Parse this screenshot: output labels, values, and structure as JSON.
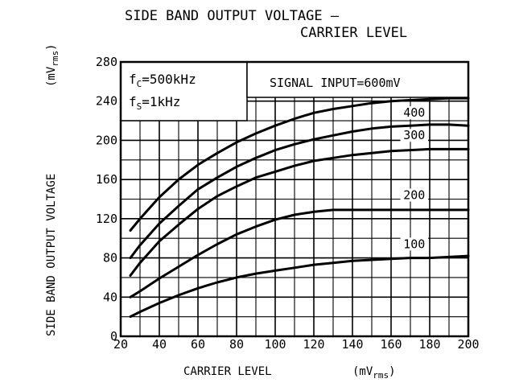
{
  "chart_data": {
    "type": "line",
    "title_line1": "SIDE BAND OUTPUT VOLTAGE —",
    "title_line2": "CARRIER LEVEL",
    "xlabel": "CARRIER LEVEL",
    "xlabel_unit_main": "(mV",
    "xlabel_unit_sub": "rms",
    "xlabel_unit_close": ")",
    "ylabel": "SIDE BAND OUTPUT VOLTAGE",
    "ylabel_unit_main": "(mV",
    "ylabel_unit_sub": "rms",
    "ylabel_unit_close": ")",
    "xlim": [
      20,
      200
    ],
    "ylim": [
      0,
      280
    ],
    "x_ticks": [
      20,
      40,
      60,
      80,
      100,
      120,
      140,
      160,
      180,
      200
    ],
    "x_tick_labels": [
      "20",
      "40",
      "60",
      "80",
      "100",
      "120",
      "140",
      "160",
      "180",
      "200"
    ],
    "y_ticks": [
      0,
      40,
      80,
      120,
      160,
      200,
      240,
      280
    ],
    "y_tick_labels": [
      "0",
      "40",
      "80",
      "120",
      "160",
      "200",
      "240",
      "280"
    ],
    "grid": true,
    "annotations": {
      "fc": {
        "main": "f",
        "sub": "C",
        "value": "=500kHz"
      },
      "fs": {
        "main": "f",
        "sub": "S",
        "value": "=1kHz"
      },
      "signal_input": "SIGNAL INPUT=600mV"
    },
    "series": [
      {
        "name": "600mV",
        "x": [
          25,
          30,
          40,
          50,
          60,
          70,
          80,
          90,
          100,
          110,
          120,
          130,
          140,
          150,
          160,
          170,
          180,
          190,
          200
        ],
        "y": [
          108,
          120,
          142,
          160,
          175,
          187,
          198,
          207,
          215,
          222,
          228,
          232,
          235,
          238,
          240,
          241,
          242,
          243,
          243
        ]
      },
      {
        "name": "400",
        "x": [
          25,
          30,
          40,
          50,
          60,
          70,
          80,
          90,
          100,
          110,
          120,
          130,
          140,
          150,
          160,
          170,
          180,
          190,
          200
        ],
        "y": [
          80,
          93,
          115,
          133,
          150,
          162,
          173,
          182,
          190,
          196,
          201,
          205,
          209,
          212,
          214,
          215,
          216,
          216,
          215
        ]
      },
      {
        "name": "300",
        "x": [
          25,
          30,
          40,
          50,
          60,
          70,
          80,
          90,
          100,
          110,
          120,
          130,
          140,
          150,
          160,
          170,
          180,
          190,
          200
        ],
        "y": [
          62,
          75,
          97,
          114,
          130,
          143,
          153,
          162,
          168,
          174,
          179,
          182,
          185,
          187,
          189,
          190,
          191,
          191,
          191
        ]
      },
      {
        "name": "200",
        "x": [
          25,
          30,
          40,
          50,
          60,
          70,
          80,
          90,
          100,
          110,
          120,
          130,
          140,
          150,
          160,
          170,
          180,
          190,
          200
        ],
        "y": [
          40,
          46,
          59,
          71,
          83,
          94,
          104,
          112,
          119,
          124,
          127,
          129,
          129,
          129,
          129,
          129,
          129,
          129,
          129
        ]
      },
      {
        "name": "100",
        "x": [
          25,
          30,
          40,
          50,
          60,
          70,
          80,
          90,
          100,
          110,
          120,
          130,
          140,
          150,
          160,
          170,
          180,
          190,
          200
        ],
        "y": [
          20,
          25,
          34,
          42,
          49,
          55,
          60,
          64,
          67,
          70,
          73,
          75,
          77,
          78,
          79,
          80,
          80,
          81,
          82
        ]
      }
    ],
    "curve_labels": [
      {
        "series": "400",
        "text": "400",
        "x": 172,
        "y": 224
      },
      {
        "series": "300",
        "text": "300",
        "x": 172,
        "y": 201
      },
      {
        "series": "200",
        "text": "200",
        "x": 172,
        "y": 140
      },
      {
        "series": "100",
        "text": "100",
        "x": 172,
        "y": 90
      }
    ]
  }
}
